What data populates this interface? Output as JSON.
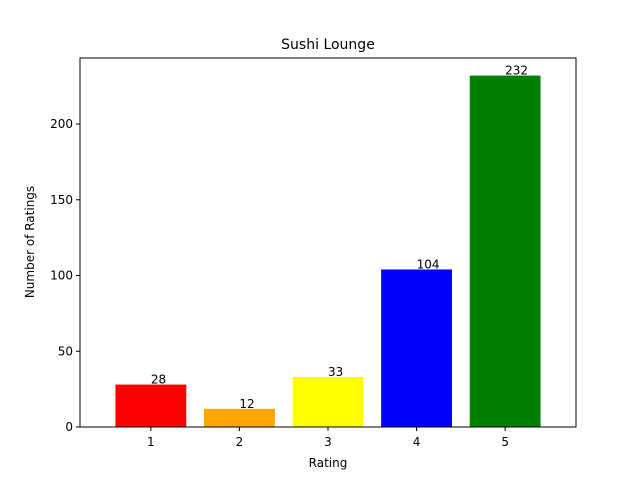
{
  "chart_data": {
    "type": "bar",
    "title": "Sushi Lounge",
    "xlabel": "Rating",
    "ylabel": "Number of Ratings",
    "categories": [
      "1",
      "2",
      "3",
      "4",
      "5"
    ],
    "values": [
      28,
      12,
      33,
      104,
      232
    ],
    "data_labels": [
      "28",
      "12",
      "33",
      "104",
      "232"
    ],
    "colors": [
      "#ff0000",
      "#ffa500",
      "#ffff00",
      "#0000ff",
      "#008000"
    ],
    "ylim": [
      0,
      243.6
    ],
    "yticks": [
      0,
      50,
      100,
      150,
      200
    ],
    "ytick_labels": [
      "0",
      "50",
      "100",
      "150",
      "200"
    ],
    "grid": false,
    "legend": "none"
  }
}
